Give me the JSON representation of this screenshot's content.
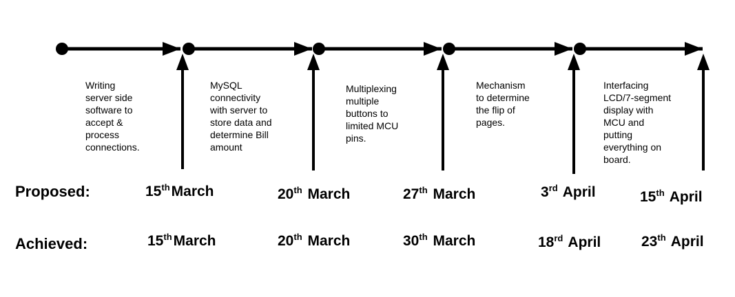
{
  "tasks": [
    "Writing\nserver side\nsoftware to\naccept &\nprocess\nconnections.",
    "MySQL\nconnectivity\nwith server to\nstore data and\ndetermine Bill\namount",
    "Multiplexing\nmultiple\nbuttons to\nlimited MCU\npins.",
    "Mechanism\nto determine\nthe flip of\npages.",
    "Interfacing\nLCD/7-segment\ndisplay with\nMCU and\nputting\neverything on\nboard."
  ],
  "rows": {
    "proposed_label": "Proposed:",
    "achieved_label": "Achieved:"
  },
  "proposed": [
    {
      "day": "15",
      "suffix": "th",
      "month": "March"
    },
    {
      "day": "20",
      "suffix": "th",
      "month": "March"
    },
    {
      "day": "27",
      "suffix": "th",
      "month": "March"
    },
    {
      "day": "3",
      "suffix": "rd",
      "month": "April"
    },
    {
      "day": "15",
      "suffix": "th",
      "month": "April"
    }
  ],
  "achieved": [
    {
      "day": "15",
      "suffix": "th",
      "month": "March"
    },
    {
      "day": "20",
      "suffix": "th",
      "month": "March"
    },
    {
      "day": "30",
      "suffix": "th",
      "month": "March"
    },
    {
      "day": "18",
      "suffix": "rd",
      "month": "April"
    },
    {
      "day": "23",
      "suffix": "th",
      "month": "April"
    }
  ]
}
